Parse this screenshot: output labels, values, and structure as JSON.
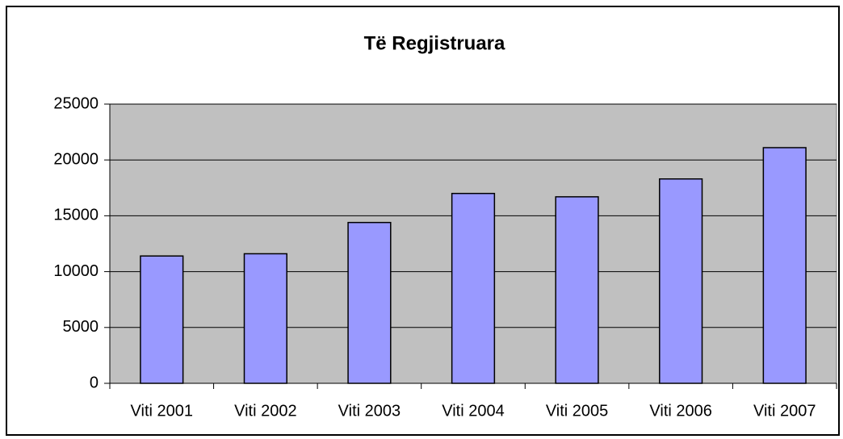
{
  "chart_data": {
    "type": "bar",
    "title": "Të Regjistruara",
    "categories": [
      "Viti 2001",
      "Viti 2002",
      "Viti 2003",
      "Viti 2004",
      "Viti 2005",
      "Viti 2006",
      "Viti 2007"
    ],
    "values": [
      11400,
      11600,
      14400,
      17000,
      16700,
      18300,
      21100
    ],
    "color": "#9999ff",
    "ylim": [
      0,
      25000
    ],
    "yticks": [
      0,
      5000,
      10000,
      15000,
      20000,
      25000
    ],
    "grid": true
  }
}
